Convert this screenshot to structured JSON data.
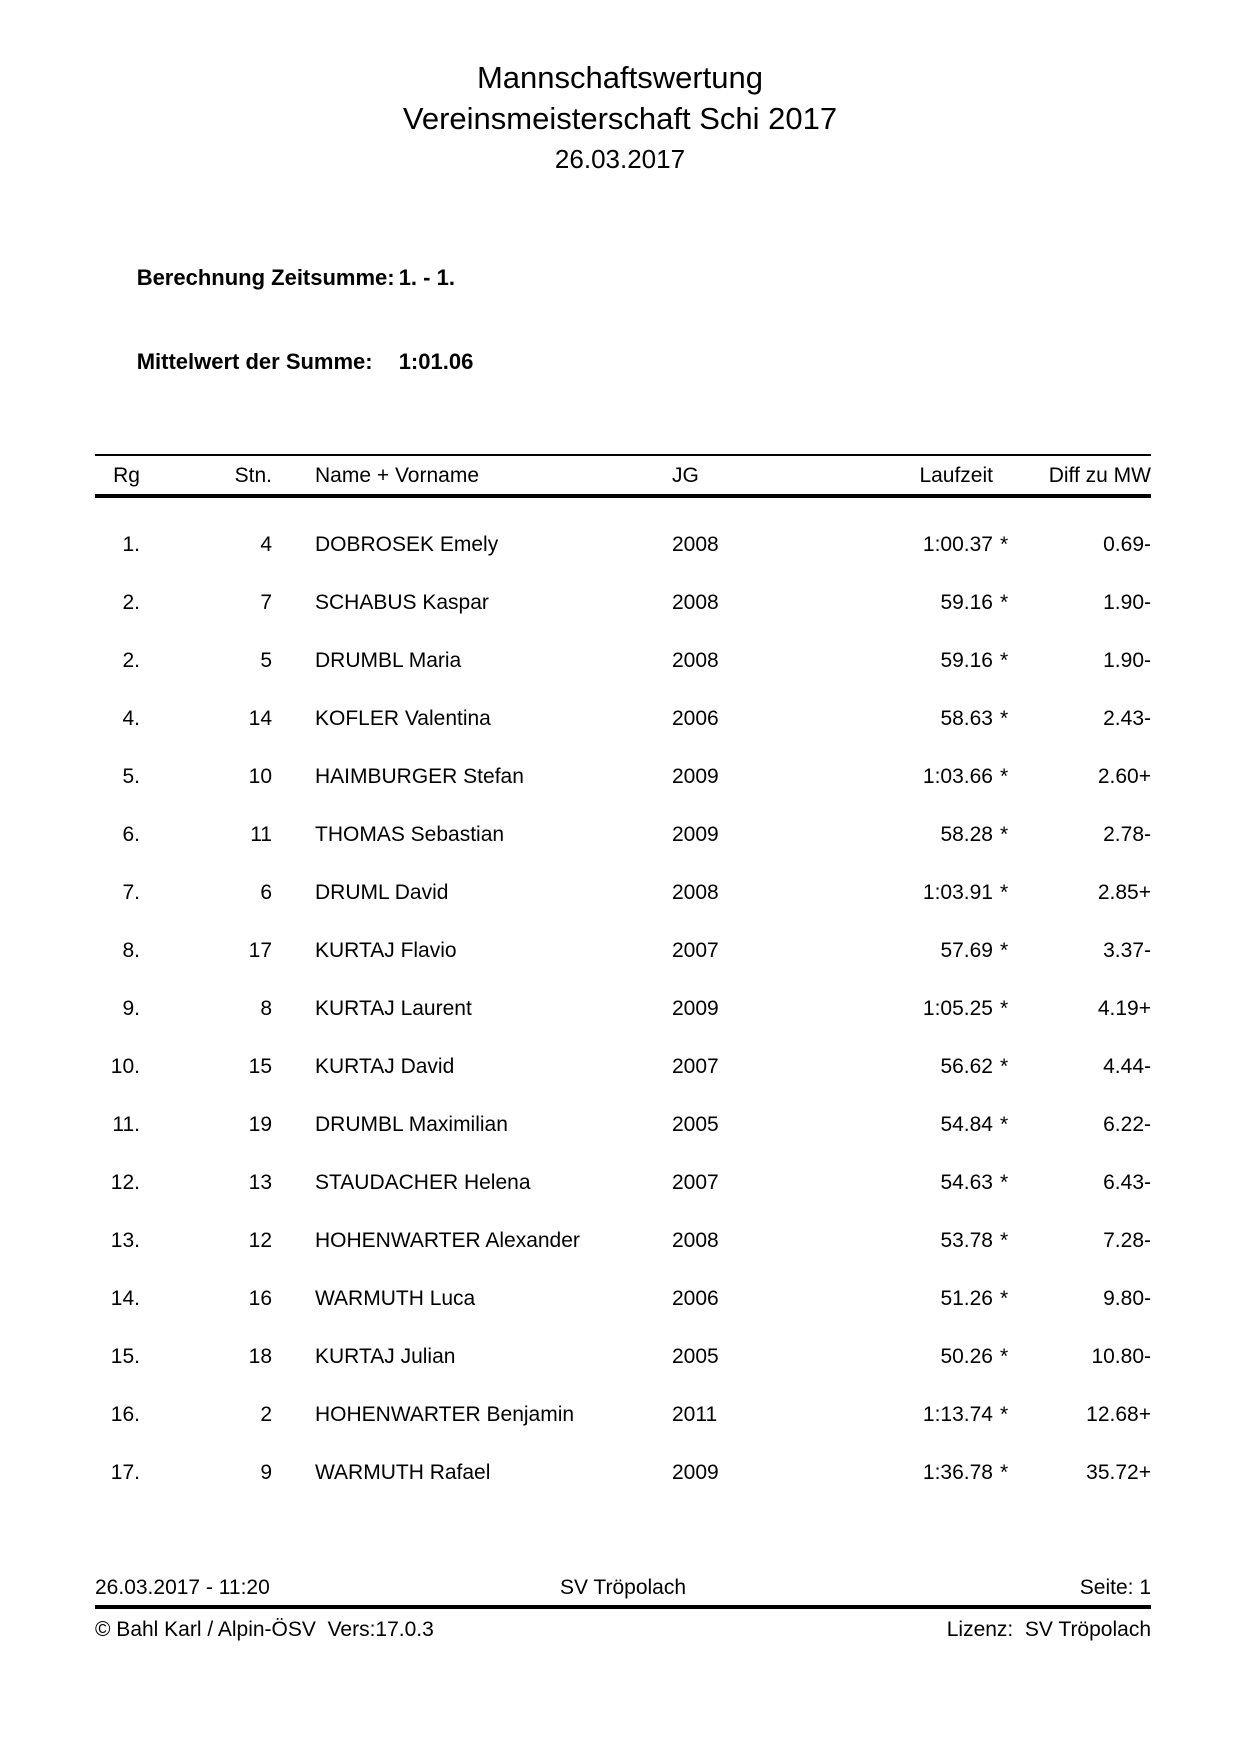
{
  "title": {
    "line1": "Mannschaftswertung",
    "line2": "Vereinsmeisterschaft Schi 2017",
    "date": "26.03.2017"
  },
  "summary": {
    "calc_label": "Berechnung Zeitsumme:",
    "calc_value": "1. - 1.",
    "mean_label": "Mittelwert der Summe:",
    "mean_value": "1:01.06"
  },
  "table": {
    "headers": {
      "rg": "Rg",
      "stn": "Stn.",
      "name": "Name + Vorname",
      "jg": "JG",
      "laufzeit": "Laufzeit",
      "star": "",
      "diff": "Diff zu MW"
    },
    "rows": [
      {
        "rg": "1.",
        "stn": "4",
        "name": "DOBROSEK Emely",
        "jg": "2008",
        "laufzeit": "1:00.37",
        "star": "*",
        "diff": "0.69-"
      },
      {
        "rg": "2.",
        "stn": "7",
        "name": "SCHABUS Kaspar",
        "jg": "2008",
        "laufzeit": "59.16",
        "star": "*",
        "diff": "1.90-"
      },
      {
        "rg": "2.",
        "stn": "5",
        "name": "DRUMBL Maria",
        "jg": "2008",
        "laufzeit": "59.16",
        "star": "*",
        "diff": "1.90-"
      },
      {
        "rg": "4.",
        "stn": "14",
        "name": "KOFLER Valentina",
        "jg": "2006",
        "laufzeit": "58.63",
        "star": "*",
        "diff": "2.43-"
      },
      {
        "rg": "5.",
        "stn": "10",
        "name": "HAIMBURGER Stefan",
        "jg": "2009",
        "laufzeit": "1:03.66",
        "star": "*",
        "diff": "2.60+"
      },
      {
        "rg": "6.",
        "stn": "11",
        "name": "THOMAS Sebastian",
        "jg": "2009",
        "laufzeit": "58.28",
        "star": "*",
        "diff": "2.78-"
      },
      {
        "rg": "7.",
        "stn": "6",
        "name": "DRUML David",
        "jg": "2008",
        "laufzeit": "1:03.91",
        "star": "*",
        "diff": "2.85+"
      },
      {
        "rg": "8.",
        "stn": "17",
        "name": "KURTAJ Flavio",
        "jg": "2007",
        "laufzeit": "57.69",
        "star": "*",
        "diff": "3.37-"
      },
      {
        "rg": "9.",
        "stn": "8",
        "name": "KURTAJ Laurent",
        "jg": "2009",
        "laufzeit": "1:05.25",
        "star": "*",
        "diff": "4.19+"
      },
      {
        "rg": "10.",
        "stn": "15",
        "name": "KURTAJ David",
        "jg": "2007",
        "laufzeit": "56.62",
        "star": "*",
        "diff": "4.44-"
      },
      {
        "rg": "11.",
        "stn": "19",
        "name": "DRUMBL Maximilian",
        "jg": "2005",
        "laufzeit": "54.84",
        "star": "*",
        "diff": "6.22-"
      },
      {
        "rg": "12.",
        "stn": "13",
        "name": "STAUDACHER Helena",
        "jg": "2007",
        "laufzeit": "54.63",
        "star": "*",
        "diff": "6.43-"
      },
      {
        "rg": "13.",
        "stn": "12",
        "name": "HOHENWARTER Alexander",
        "jg": "2008",
        "laufzeit": "53.78",
        "star": "*",
        "diff": "7.28-"
      },
      {
        "rg": "14.",
        "stn": "16",
        "name": "WARMUTH Luca",
        "jg": "2006",
        "laufzeit": "51.26",
        "star": "*",
        "diff": "9.80-"
      },
      {
        "rg": "15.",
        "stn": "18",
        "name": "KURTAJ Julian",
        "jg": "2005",
        "laufzeit": "50.26",
        "star": "*",
        "diff": "10.80-"
      },
      {
        "rg": "16.",
        "stn": "2",
        "name": "HOHENWARTER Benjamin",
        "jg": "2011",
        "laufzeit": "1:13.74",
        "star": "*",
        "diff": "12.68+"
      },
      {
        "rg": "17.",
        "stn": "9",
        "name": "WARMUTH Rafael",
        "jg": "2009",
        "laufzeit": "1:36.78",
        "star": "*",
        "diff": "35.72+"
      }
    ]
  },
  "footer": {
    "datetime": "26.03.2017 - 11:20",
    "club": "SV Tröpolach",
    "page": "Seite: 1",
    "copyright": "© Bahl Karl / Alpin-ÖSV  Vers:17.0.3",
    "license": "Lizenz:  SV Tröpolach"
  }
}
